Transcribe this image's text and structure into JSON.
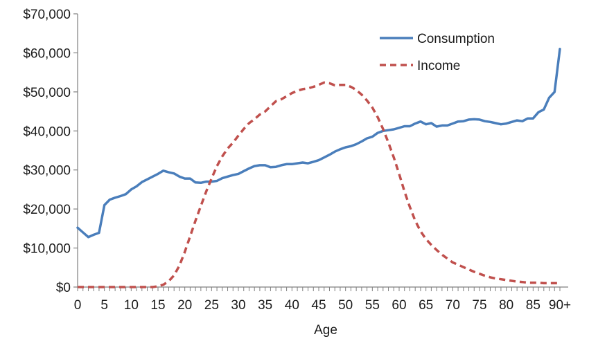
{
  "chart_data": {
    "type": "line",
    "title": "",
    "xlabel": "Age",
    "ylabel": "",
    "xlim": [
      0,
      90
    ],
    "ylim": [
      0,
      70000
    ],
    "grid": false,
    "legend_placement": "top-right",
    "x_tick_labels": [
      "0",
      "5",
      "10",
      "15",
      "20",
      "25",
      "30",
      "35",
      "40",
      "45",
      "50",
      "55",
      "60",
      "65",
      "70",
      "75",
      "80",
      "85",
      "90+"
    ],
    "x_tick_values": [
      0,
      5,
      10,
      15,
      20,
      25,
      30,
      35,
      40,
      45,
      50,
      55,
      60,
      65,
      70,
      75,
      80,
      85,
      90
    ],
    "y_tick_labels": [
      "$0",
      "$10,000",
      "$20,000",
      "$30,000",
      "$40,000",
      "$50,000",
      "$60,000",
      "$70,000"
    ],
    "y_tick_values": [
      0,
      10000,
      20000,
      30000,
      40000,
      50000,
      60000,
      70000
    ],
    "series": [
      {
        "name": "Consumption",
        "color": "#4a7ebb",
        "dash": "solid",
        "points": [
          [
            0,
            15200
          ],
          [
            1,
            14000
          ],
          [
            2,
            12800
          ],
          [
            3,
            13400
          ],
          [
            4,
            13900
          ],
          [
            5,
            21000
          ],
          [
            6,
            22400
          ],
          [
            7,
            22900
          ],
          [
            8,
            23300
          ],
          [
            9,
            23800
          ],
          [
            10,
            25000
          ],
          [
            11,
            25800
          ],
          [
            12,
            26900
          ],
          [
            13,
            27600
          ],
          [
            14,
            28300
          ],
          [
            15,
            29000
          ],
          [
            16,
            29800
          ],
          [
            17,
            29400
          ],
          [
            18,
            29100
          ],
          [
            19,
            28300
          ],
          [
            20,
            27800
          ],
          [
            21,
            27800
          ],
          [
            22,
            26800
          ],
          [
            23,
            26700
          ],
          [
            24,
            27000
          ],
          [
            25,
            27000
          ],
          [
            26,
            27200
          ],
          [
            27,
            27900
          ],
          [
            28,
            28300
          ],
          [
            29,
            28700
          ],
          [
            30,
            29000
          ],
          [
            31,
            29700
          ],
          [
            32,
            30400
          ],
          [
            33,
            31000
          ],
          [
            34,
            31200
          ],
          [
            35,
            31200
          ],
          [
            36,
            30700
          ],
          [
            37,
            30800
          ],
          [
            38,
            31200
          ],
          [
            39,
            31500
          ],
          [
            40,
            31500
          ],
          [
            41,
            31700
          ],
          [
            42,
            31900
          ],
          [
            43,
            31700
          ],
          [
            44,
            32100
          ],
          [
            45,
            32500
          ],
          [
            46,
            33200
          ],
          [
            47,
            33900
          ],
          [
            48,
            34700
          ],
          [
            49,
            35300
          ],
          [
            50,
            35800
          ],
          [
            51,
            36100
          ],
          [
            52,
            36600
          ],
          [
            53,
            37300
          ],
          [
            54,
            38100
          ],
          [
            55,
            38500
          ],
          [
            56,
            39500
          ],
          [
            57,
            40000
          ],
          [
            58,
            40200
          ],
          [
            59,
            40400
          ],
          [
            60,
            40800
          ],
          [
            61,
            41200
          ],
          [
            62,
            41200
          ],
          [
            63,
            41900
          ],
          [
            64,
            42400
          ],
          [
            65,
            41700
          ],
          [
            66,
            42000
          ],
          [
            67,
            41100
          ],
          [
            68,
            41400
          ],
          [
            69,
            41400
          ],
          [
            70,
            41900
          ],
          [
            71,
            42400
          ],
          [
            72,
            42500
          ],
          [
            73,
            42900
          ],
          [
            74,
            43000
          ],
          [
            75,
            42900
          ],
          [
            76,
            42500
          ],
          [
            77,
            42300
          ],
          [
            78,
            42000
          ],
          [
            79,
            41700
          ],
          [
            80,
            41900
          ],
          [
            81,
            42300
          ],
          [
            82,
            42700
          ],
          [
            83,
            42500
          ],
          [
            84,
            43200
          ],
          [
            85,
            43200
          ],
          [
            86,
            44800
          ],
          [
            87,
            45500
          ],
          [
            88,
            48500
          ],
          [
            89,
            50000
          ],
          [
            90,
            61000
          ]
        ]
      },
      {
        "name": "Income",
        "color": "#c0504d",
        "dash": "dashed",
        "points": [
          [
            0,
            0
          ],
          [
            5,
            0
          ],
          [
            10,
            0
          ],
          [
            14,
            0
          ],
          [
            15,
            200
          ],
          [
            16,
            600
          ],
          [
            17,
            1500
          ],
          [
            18,
            3000
          ],
          [
            19,
            5500
          ],
          [
            20,
            9000
          ],
          [
            21,
            13000
          ],
          [
            22,
            17000
          ],
          [
            23,
            20800
          ],
          [
            24,
            24500
          ],
          [
            25,
            27800
          ],
          [
            26,
            31000
          ],
          [
            27,
            33500
          ],
          [
            28,
            35500
          ],
          [
            29,
            37000
          ],
          [
            30,
            38800
          ],
          [
            31,
            40500
          ],
          [
            32,
            42000
          ],
          [
            33,
            43000
          ],
          [
            34,
            44200
          ],
          [
            35,
            45000
          ],
          [
            36,
            46300
          ],
          [
            37,
            47600
          ],
          [
            38,
            48100
          ],
          [
            39,
            48900
          ],
          [
            40,
            49700
          ],
          [
            41,
            50300
          ],
          [
            42,
            50700
          ],
          [
            43,
            50900
          ],
          [
            44,
            51300
          ],
          [
            45,
            51800
          ],
          [
            46,
            52400
          ],
          [
            47,
            52200
          ],
          [
            48,
            51700
          ],
          [
            49,
            51800
          ],
          [
            50,
            51800
          ],
          [
            51,
            51300
          ],
          [
            52,
            50500
          ],
          [
            53,
            49300
          ],
          [
            54,
            47800
          ],
          [
            55,
            46000
          ],
          [
            56,
            43500
          ],
          [
            57,
            40500
          ],
          [
            58,
            37000
          ],
          [
            59,
            33200
          ],
          [
            60,
            29000
          ],
          [
            61,
            24500
          ],
          [
            62,
            20500
          ],
          [
            63,
            17000
          ],
          [
            64,
            14300
          ],
          [
            65,
            12300
          ],
          [
            66,
            10800
          ],
          [
            67,
            9500
          ],
          [
            68,
            8300
          ],
          [
            69,
            7300
          ],
          [
            70,
            6300
          ],
          [
            71,
            5700
          ],
          [
            72,
            5100
          ],
          [
            73,
            4500
          ],
          [
            74,
            3900
          ],
          [
            75,
            3400
          ],
          [
            76,
            2900
          ],
          [
            77,
            2500
          ],
          [
            78,
            2200
          ],
          [
            79,
            2000
          ],
          [
            80,
            1800
          ],
          [
            81,
            1600
          ],
          [
            82,
            1400
          ],
          [
            83,
            1300
          ],
          [
            84,
            1100
          ],
          [
            85,
            1100
          ],
          [
            86,
            1100
          ],
          [
            87,
            1000
          ],
          [
            88,
            1000
          ],
          [
            89,
            1000
          ],
          [
            90,
            1000
          ]
        ]
      }
    ]
  }
}
